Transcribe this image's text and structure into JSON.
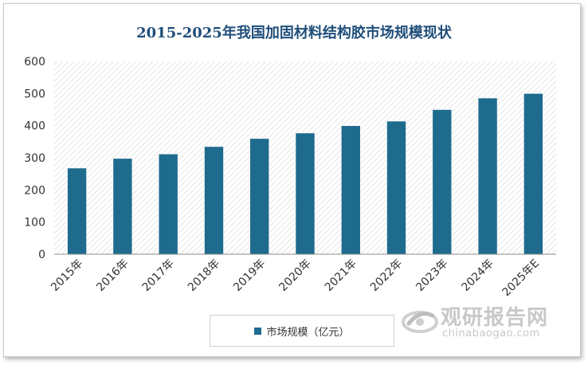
{
  "title": "2015-2025年我国加固材料结构胶市场规模现状",
  "legend": {
    "label": "市场规模（亿元）"
  },
  "watermark": {
    "brand": "观研报告网",
    "url": "chinabaogao.com"
  },
  "colors": {
    "bar": "#1f6b8e",
    "title": "#1f4e79",
    "hatch": "#d4d4d4"
  },
  "chart_data": {
    "type": "bar",
    "title": "2015-2025年我国加固材料结构胶市场规模现状",
    "xlabel": "",
    "ylabel": "",
    "categories": [
      "2015年",
      "2016年",
      "2017年",
      "2018年",
      "2019年",
      "2020年",
      "2021年",
      "2022年",
      "2023年",
      "2024年",
      "2025年E"
    ],
    "series": [
      {
        "name": "市场规模（亿元）",
        "values": [
          268,
          298,
          312,
          335,
          360,
          377,
          400,
          414,
          450,
          486,
          500
        ]
      }
    ],
    "ylim": [
      0,
      600
    ],
    "yticks": [
      0,
      100,
      200,
      300,
      400,
      500,
      600
    ],
    "grid": false,
    "legend_position": "bottom"
  }
}
